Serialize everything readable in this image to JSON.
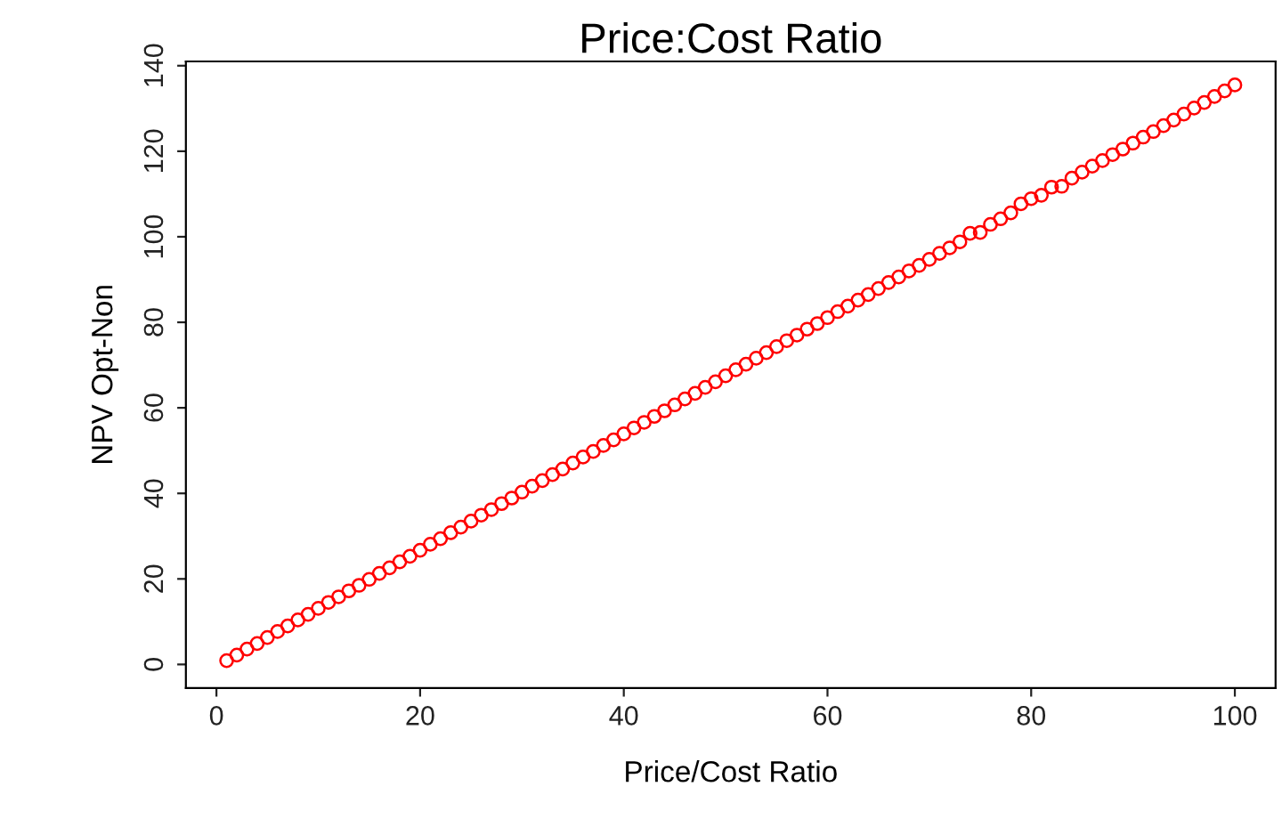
{
  "chart_data": {
    "type": "scatter",
    "title": "Price:Cost Ratio",
    "xlabel": "Price/Cost Ratio",
    "ylabel": "NPV Opt-Non",
    "x": [
      1,
      2,
      3,
      4,
      5,
      6,
      7,
      8,
      9,
      10,
      11,
      12,
      13,
      14,
      15,
      16,
      17,
      18,
      19,
      20,
      21,
      22,
      23,
      24,
      25,
      26,
      27,
      28,
      29,
      30,
      31,
      32,
      33,
      34,
      35,
      36,
      37,
      38,
      39,
      40,
      41,
      42,
      43,
      44,
      45,
      46,
      47,
      48,
      49,
      50,
      51,
      52,
      53,
      54,
      55,
      56,
      57,
      58,
      59,
      60,
      61,
      62,
      63,
      64,
      65,
      66,
      67,
      68,
      69,
      70,
      71,
      72,
      73,
      74,
      75,
      76,
      77,
      78,
      79,
      80,
      81,
      82,
      83,
      84,
      85,
      86,
      87,
      88,
      89,
      90,
      91,
      92,
      93,
      94,
      95,
      96,
      97,
      98,
      99,
      100
    ],
    "series": [
      {
        "color": "#ff0000",
        "values": [
          0.9,
          2.2,
          3.6,
          4.9,
          6.3,
          7.7,
          9.0,
          10.4,
          11.7,
          13.1,
          14.5,
          15.8,
          17.2,
          18.5,
          19.9,
          21.3,
          22.6,
          24.0,
          25.3,
          26.7,
          28.1,
          29.4,
          30.8,
          32.1,
          33.5,
          34.9,
          36.2,
          37.6,
          38.9,
          40.3,
          41.7,
          43.0,
          44.4,
          45.7,
          47.1,
          48.5,
          49.8,
          51.2,
          52.5,
          53.9,
          55.3,
          56.6,
          58.0,
          59.3,
          60.7,
          62.1,
          63.4,
          64.8,
          66.1,
          67.5,
          68.9,
          70.2,
          71.6,
          72.9,
          74.3,
          75.7,
          77.0,
          78.4,
          79.7,
          81.1,
          82.5,
          83.8,
          85.2,
          86.5,
          87.9,
          89.3,
          90.6,
          92.0,
          93.3,
          94.7,
          96.1,
          97.4,
          98.8,
          100.8,
          101.0,
          102.9,
          104.2,
          105.6,
          107.7,
          108.9,
          109.7,
          111.6,
          111.8,
          113.7,
          115.1,
          116.5,
          117.8,
          119.2,
          120.5,
          121.9,
          123.3,
          124.6,
          126.0,
          127.3,
          128.7,
          130.1,
          131.4,
          132.8,
          134.1,
          135.5
        ]
      }
    ],
    "xlim": [
      -3,
      104
    ],
    "ylim": [
      -5.5,
      141
    ],
    "xticks": [
      0,
      20,
      40,
      60,
      80,
      100
    ],
    "yticks": [
      0,
      20,
      40,
      60,
      80,
      100,
      120,
      140
    ],
    "marker": "circle",
    "grid": false,
    "legend": false
  }
}
